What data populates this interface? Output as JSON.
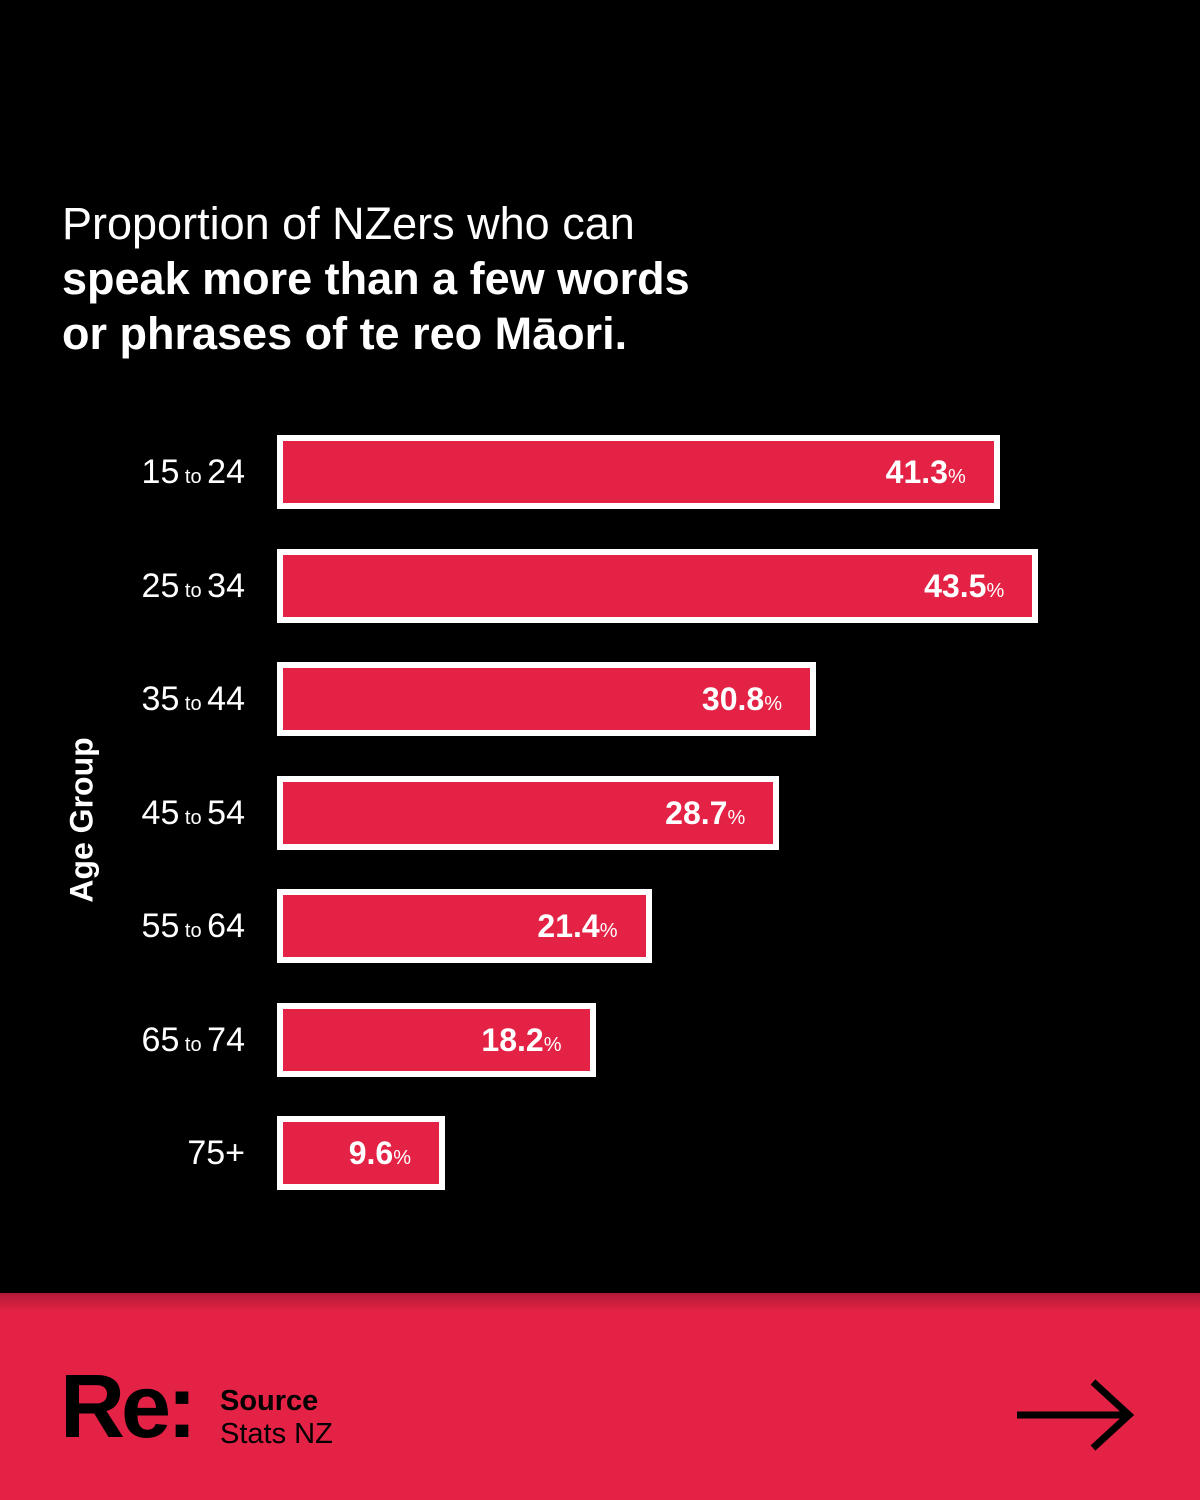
{
  "title": {
    "line1": "Proportion of NZers who can",
    "line2": "speak more than a few words",
    "line3": "or phrases of te reo Māori."
  },
  "chart_data": {
    "type": "bar",
    "orientation": "horizontal",
    "ylabel": "Age Group",
    "categories": [
      "15 to 24",
      "25 to 34",
      "35 to 44",
      "45 to 54",
      "55 to 64",
      "65 to 74",
      "75+"
    ],
    "category_parts": [
      {
        "from": "15",
        "to_word": "to",
        "to": "24"
      },
      {
        "from": "25",
        "to_word": "to",
        "to": "34"
      },
      {
        "from": "35",
        "to_word": "to",
        "to": "44"
      },
      {
        "from": "45",
        "to_word": "to",
        "to": "54"
      },
      {
        "from": "55",
        "to_word": "to",
        "to": "64"
      },
      {
        "from": "65",
        "to_word": "to",
        "to": "74"
      },
      {
        "from": "75+",
        "to_word": "",
        "to": ""
      }
    ],
    "values": [
      41.3,
      43.5,
      30.8,
      28.7,
      21.4,
      18.2,
      9.6
    ],
    "value_labels": [
      "41.3",
      "43.5",
      "30.8",
      "28.7",
      "21.4",
      "18.2",
      "9.6"
    ],
    "unit": "%",
    "grid": false,
    "colors": {
      "bar": "#e32245",
      "bar_border": "#ffffff",
      "background": "#000000"
    }
  },
  "footer": {
    "logo": "Re:",
    "source_label": "Source",
    "source_value": "Stats NZ",
    "next_icon": "arrow-right-icon",
    "background": "#e32245"
  }
}
